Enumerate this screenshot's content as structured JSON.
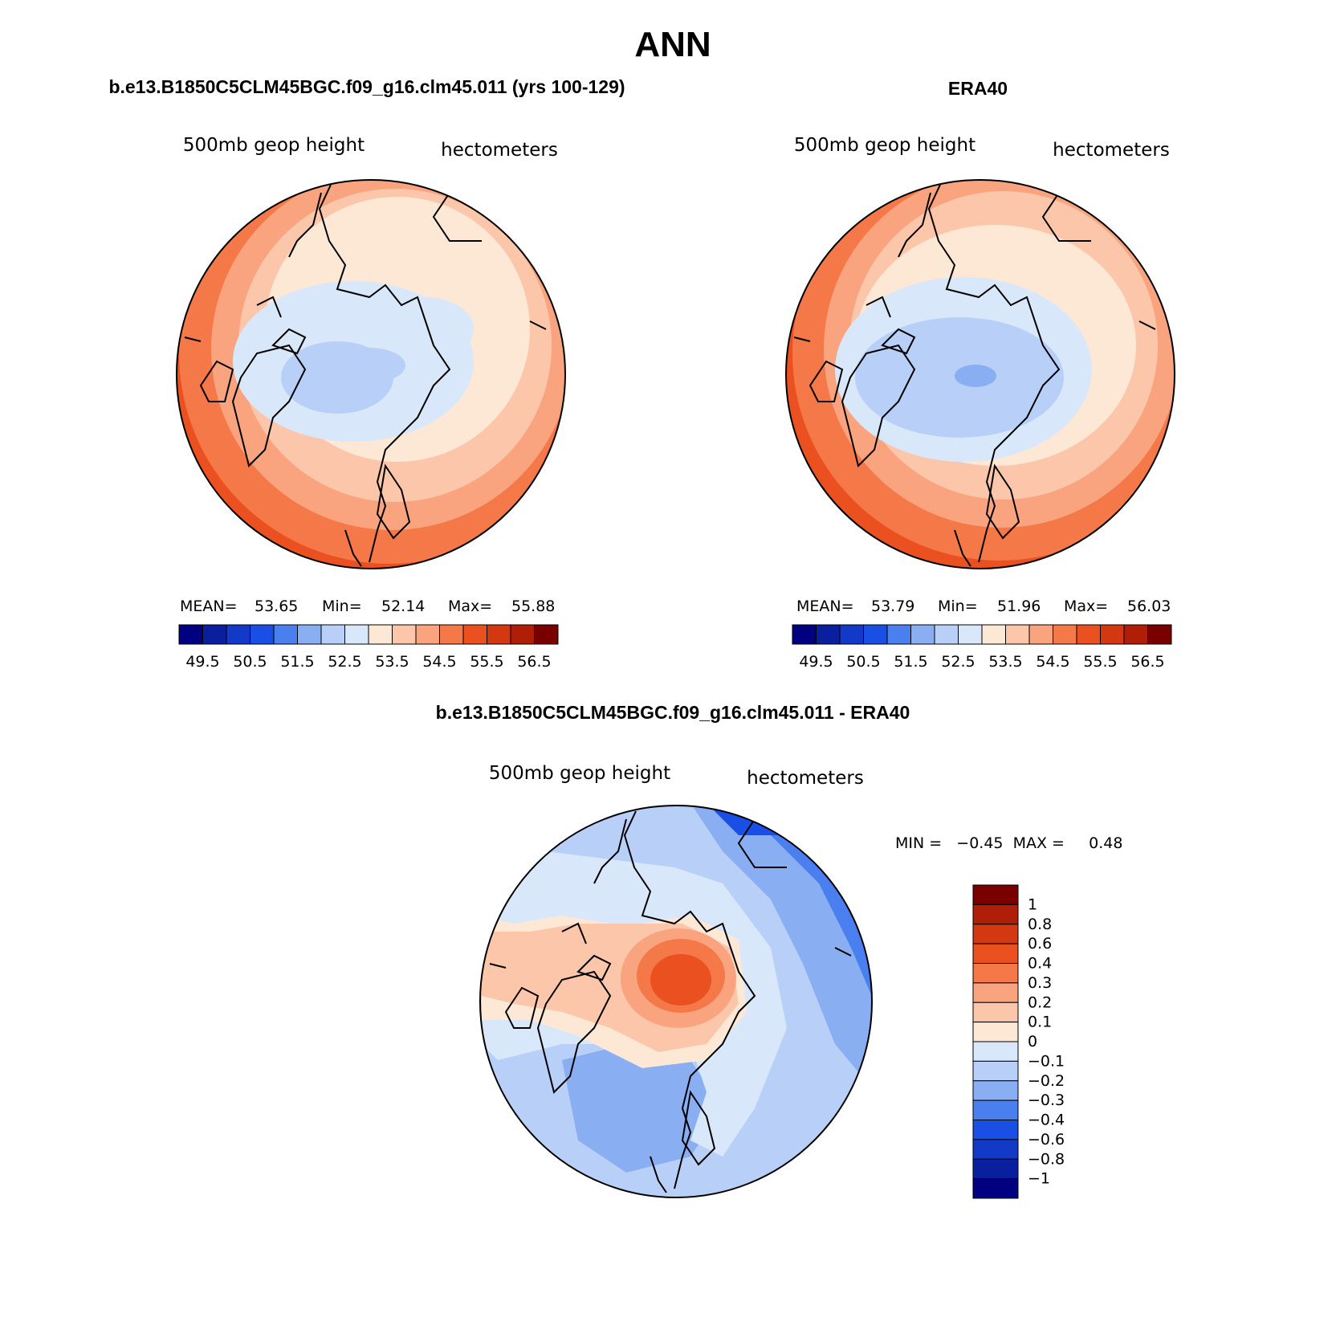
{
  "figure": {
    "main_title": "ANN",
    "panels": [
      {
        "title": "b.e13.B1850C5CLM45BGC.f09_g16.clm45.011 (yrs 100-129)",
        "left_label": "500mb  geop  height",
        "right_label": "hectometers",
        "stats": {
          "mean_label": "MEAN=",
          "mean": "53.65",
          "min_label": "Min=",
          "min": "52.14",
          "max_label": "Max=",
          "max": "55.88"
        }
      },
      {
        "title": "ERA40",
        "left_label": "500mb  geop  height",
        "right_label": "hectometers",
        "stats": {
          "mean_label": "MEAN=",
          "mean": "53.79",
          "min_label": "Min=",
          "min": "51.96",
          "max_label": "Max=",
          "max": "56.03"
        }
      },
      {
        "title": "b.e13.B1850C5CLM45BGC.f09_g16.clm45.011 - ERA40",
        "left_label": "500mb  geop  height",
        "right_label": "hectometers",
        "stats": {
          "text": "MIN =   −0.45  MAX =     0.48"
        }
      }
    ],
    "abs_colorbar": {
      "colors": [
        "#000080",
        "#0a1f9e",
        "#1239c8",
        "#1a4fe6",
        "#4a7ff0",
        "#8aaef2",
        "#b8d0f8",
        "#d8e8fa",
        "#fde8d6",
        "#fcc6aa",
        "#f9a47e",
        "#f47848",
        "#ea5020",
        "#d43810",
        "#b01e08",
        "#7a0000"
      ],
      "labels": [
        "49.5",
        "50.5",
        "51.5",
        "52.5",
        "53.5",
        "54.5",
        "55.5",
        "56.5"
      ]
    },
    "diff_colorbar": {
      "colors": [
        "#7a0000",
        "#b01e08",
        "#d43810",
        "#ea5020",
        "#f47848",
        "#f9a47e",
        "#fcc6aa",
        "#fde8d6",
        "#d8e8fa",
        "#b8d0f8",
        "#8aaef2",
        "#4a7ff0",
        "#1a4fe6",
        "#1239c8",
        "#0a1f9e",
        "#000080"
      ],
      "labels": [
        "1",
        "0.8",
        "0.6",
        "0.4",
        "0.3",
        "0.2",
        "0.1",
        "0",
        "−0.1",
        "−0.2",
        "−0.3",
        "−0.4",
        "−0.6",
        "−0.8",
        "−1"
      ]
    }
  }
}
